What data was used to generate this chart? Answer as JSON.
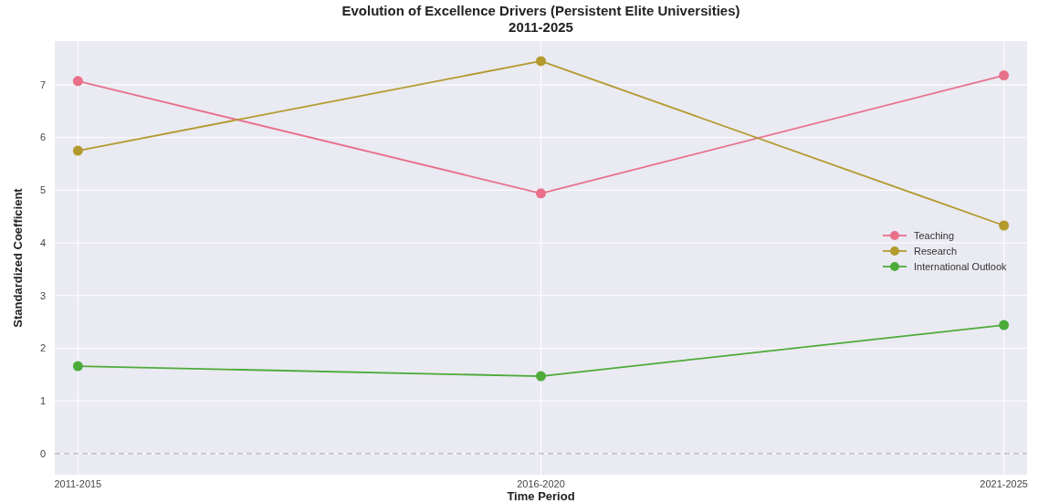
{
  "chart_data": {
    "type": "line",
    "title": "Evolution of Excellence Drivers (Persistent Elite Universities)\n2011-2025",
    "xlabel": "Time Period",
    "ylabel": "Standardized Coefficient",
    "categories": [
      "2011-2015",
      "2016-2020",
      "2021-2025"
    ],
    "series": [
      {
        "name": "Teaching",
        "color": "#e8708a",
        "values": [
          7.07,
          4.94,
          7.18
        ]
      },
      {
        "name": "Research",
        "color": "#b39a2e",
        "values": [
          5.75,
          7.45,
          4.33
        ]
      },
      {
        "name": "International Outlook",
        "color": "#4dab3a",
        "values": [
          1.66,
          1.47,
          2.44
        ]
      }
    ],
    "ylim": [
      -0.4,
      7.83
    ],
    "yticks": [
      0,
      1,
      2,
      3,
      4,
      5,
      6,
      7
    ],
    "grid": true,
    "legend": "right",
    "marker": "circle",
    "line_style": "solid",
    "ref_lines": [
      {
        "axis": "y",
        "value": 0,
        "color": "#a0a0a0",
        "line_style": "dashed"
      }
    ]
  }
}
